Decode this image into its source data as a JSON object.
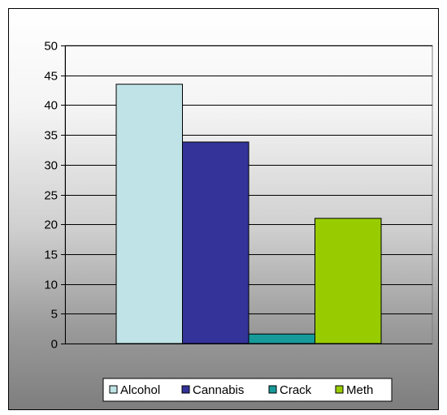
{
  "chart_data": {
    "type": "bar",
    "categories": [
      "Alcohol",
      "Cannabis",
      "Crack",
      "Meth"
    ],
    "values": [
      43.5,
      33.8,
      1.6,
      21
    ],
    "colors": [
      "#bfe3e6",
      "#333399",
      "#169a9a",
      "#99cc00"
    ],
    "yticks": [
      "0",
      "5",
      "10",
      "15",
      "20",
      "25",
      "30",
      "35",
      "40",
      "45",
      "50"
    ],
    "ylim": [
      0,
      50
    ],
    "grid": true,
    "legend": "bottom",
    "title": "",
    "xlabel": "",
    "ylabel": ""
  }
}
